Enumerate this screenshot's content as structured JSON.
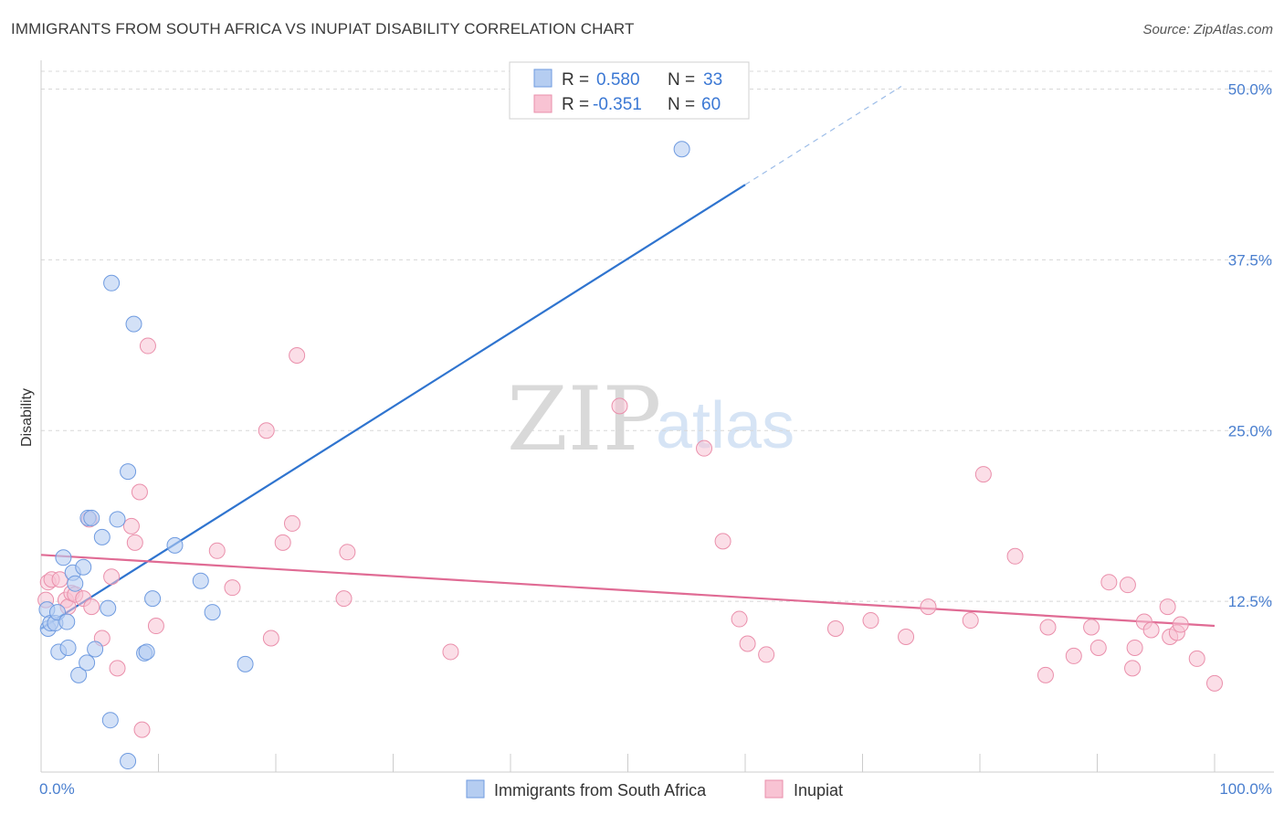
{
  "title": "IMMIGRANTS FROM SOUTH AFRICA VS INUPIAT DISABILITY CORRELATION CHART",
  "source": "Source: ZipAtlas.com",
  "watermark": {
    "zip": "ZIP",
    "atlas": "atlas"
  },
  "legend": {
    "rows": [
      {
        "r_label": "R =",
        "r_value": "0.580",
        "n_label": "N =",
        "n_value": "33"
      },
      {
        "r_label": "R =",
        "r_value": "-0.351",
        "n_label": "N =",
        "n_value": "60"
      }
    ]
  },
  "bottom_legend": [
    {
      "label": "Immigrants from South Africa"
    },
    {
      "label": "Inupiat"
    }
  ],
  "colors": {
    "blue_fill": "#b5cdf1",
    "blue_stroke": "#6f9be0",
    "blue_line": "#2f74cf",
    "pink_fill": "#f8c3d3",
    "pink_stroke": "#ea8fab",
    "pink_line": "#e06b94",
    "tick_text": "#4a7fcf",
    "grid": "#d8d8d8"
  },
  "chart_data": {
    "type": "scatter",
    "title": "IMMIGRANTS FROM SOUTH AFRICA VS INUPIAT DISABILITY CORRELATION CHART",
    "xlabel": "",
    "ylabel": "Disability",
    "xlim": [
      0,
      100
    ],
    "ylim": [
      0,
      50
    ],
    "x_tick_labels": [
      "0.0%",
      "100.0%"
    ],
    "y_ticks": [
      12.5,
      25.0,
      37.5,
      50.0
    ],
    "y_tick_labels": [
      "12.5%",
      "25.0%",
      "37.5%",
      "50.0%"
    ],
    "grid": true,
    "legend_position": "top-center",
    "series": [
      {
        "name": "Immigrants from South Africa",
        "color": "#b5cdf1",
        "points": [
          [
            0.5,
            11.9
          ],
          [
            0.6,
            10.5
          ],
          [
            0.8,
            10.9
          ],
          [
            1.2,
            10.9
          ],
          [
            1.4,
            11.7
          ],
          [
            1.5,
            8.8
          ],
          [
            1.9,
            15.7
          ],
          [
            2.2,
            11.0
          ],
          [
            2.3,
            9.1
          ],
          [
            2.7,
            14.6
          ],
          [
            2.9,
            13.8
          ],
          [
            3.2,
            7.1
          ],
          [
            3.6,
            15.0
          ],
          [
            3.9,
            8.0
          ],
          [
            4.0,
            18.6
          ],
          [
            4.3,
            18.6
          ],
          [
            4.6,
            9.0
          ],
          [
            5.2,
            17.2
          ],
          [
            5.7,
            12.0
          ],
          [
            5.9,
            3.8
          ],
          [
            6.0,
            35.8
          ],
          [
            6.5,
            18.5
          ],
          [
            7.4,
            0.8
          ],
          [
            7.4,
            22.0
          ],
          [
            7.9,
            32.8
          ],
          [
            8.8,
            8.7
          ],
          [
            9.0,
            8.8
          ],
          [
            9.5,
            12.7
          ],
          [
            11.4,
            16.6
          ],
          [
            13.6,
            14.0
          ],
          [
            14.6,
            11.7
          ],
          [
            17.4,
            7.9
          ],
          [
            54.6,
            45.6
          ]
        ]
      },
      {
        "name": "Inupiat",
        "color": "#f8c3d3",
        "points": [
          [
            0.4,
            12.6
          ],
          [
            0.6,
            13.9
          ],
          [
            0.9,
            14.1
          ],
          [
            1.6,
            14.1
          ],
          [
            2.1,
            12.6
          ],
          [
            2.3,
            12.1
          ],
          [
            2.6,
            13.1
          ],
          [
            2.9,
            13.0
          ],
          [
            3.6,
            12.7
          ],
          [
            4.1,
            18.5
          ],
          [
            4.3,
            12.1
          ],
          [
            5.2,
            9.8
          ],
          [
            6.0,
            14.3
          ],
          [
            6.5,
            7.6
          ],
          [
            7.7,
            18.0
          ],
          [
            8.0,
            16.8
          ],
          [
            8.4,
            20.5
          ],
          [
            8.6,
            3.1
          ],
          [
            9.1,
            31.2
          ],
          [
            9.8,
            10.7
          ],
          [
            15.0,
            16.2
          ],
          [
            16.3,
            13.5
          ],
          [
            19.2,
            25.0
          ],
          [
            19.6,
            9.8
          ],
          [
            20.6,
            16.8
          ],
          [
            21.4,
            18.2
          ],
          [
            21.8,
            30.5
          ],
          [
            25.8,
            12.7
          ],
          [
            26.1,
            16.1
          ],
          [
            34.9,
            8.8
          ],
          [
            49.3,
            26.8
          ],
          [
            56.5,
            23.7
          ],
          [
            58.1,
            16.9
          ],
          [
            59.5,
            11.2
          ],
          [
            60.2,
            9.4
          ],
          [
            61.8,
            8.6
          ],
          [
            67.7,
            10.5
          ],
          [
            70.7,
            11.1
          ],
          [
            73.7,
            9.9
          ],
          [
            75.6,
            12.1
          ],
          [
            79.2,
            11.1
          ],
          [
            80.3,
            21.8
          ],
          [
            83.0,
            15.8
          ],
          [
            85.6,
            7.1
          ],
          [
            85.8,
            10.6
          ],
          [
            88.0,
            8.5
          ],
          [
            89.5,
            10.6
          ],
          [
            90.1,
            9.1
          ],
          [
            91.0,
            13.9
          ],
          [
            92.6,
            13.7
          ],
          [
            93.0,
            7.6
          ],
          [
            93.2,
            9.1
          ],
          [
            94.0,
            11.0
          ],
          [
            94.6,
            10.4
          ],
          [
            96.0,
            12.1
          ],
          [
            96.2,
            9.9
          ],
          [
            96.8,
            10.2
          ],
          [
            97.1,
            10.8
          ],
          [
            98.5,
            8.3
          ],
          [
            100.0,
            6.5
          ]
        ]
      }
    ],
    "trendlines": [
      {
        "series": "Immigrants from South Africa",
        "x": [
          0,
          60
        ],
        "y": [
          10.5,
          43.0
        ],
        "dashed_extension_to_x": 73.3
      },
      {
        "series": "Inupiat",
        "x": [
          0,
          100
        ],
        "y": [
          15.9,
          10.7
        ]
      }
    ]
  }
}
